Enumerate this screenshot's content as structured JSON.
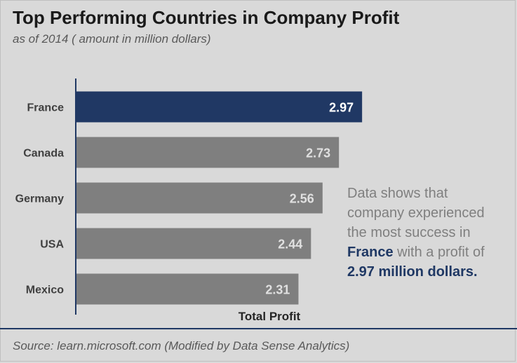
{
  "chart_data": {
    "type": "bar",
    "orientation": "horizontal",
    "title": "Top Performing Countries in Company Profit",
    "subtitle": "as of 2014 ( amount in million dollars)",
    "xlabel": "Total Profit",
    "ylabel": "",
    "categories": [
      "France",
      "Canada",
      "Germany",
      "USA",
      "Mexico"
    ],
    "values": [
      2.97,
      2.73,
      2.56,
      2.44,
      2.31
    ],
    "value_labels": [
      "2.97",
      "2.73",
      "2.56",
      "2.44",
      "2.31"
    ],
    "xlim": [
      0,
      3.5
    ],
    "grid": false,
    "highlight_index": 0,
    "colors": {
      "highlight": "#203864",
      "default": "#7f7f7f",
      "highlight_label": "#ffffff",
      "default_label": "#e0e0e0",
      "axis": "#203864"
    }
  },
  "annotation": {
    "line1": "Data shows that",
    "line2": "company experienced",
    "line3": "the most success in",
    "country": "France",
    "line4_rest": " with a profit of",
    "amount": "2.97 million dollars."
  },
  "footer": {
    "source": "Source: learn.microsoft.com (Modified by Data Sense Analytics)"
  }
}
